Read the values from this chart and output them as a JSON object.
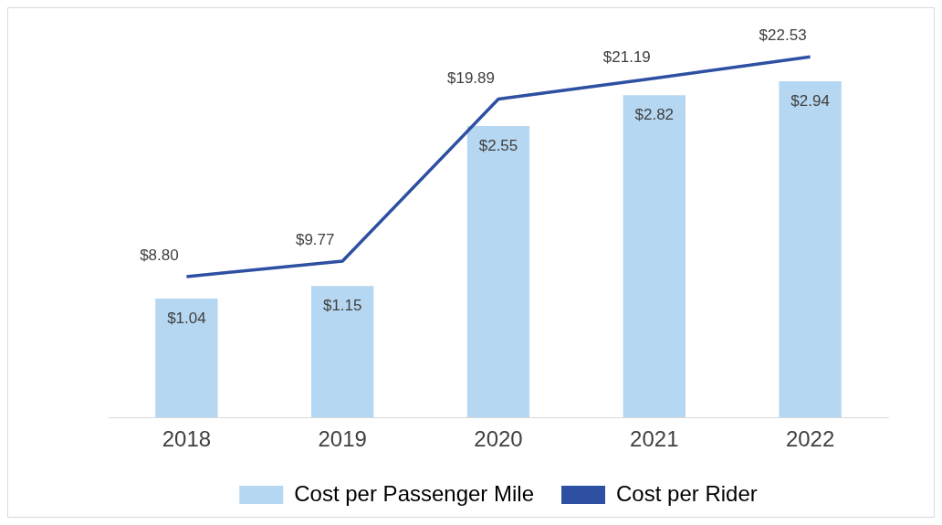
{
  "chart_data": {
    "type": "bar",
    "categories": [
      "2018",
      "2019",
      "2020",
      "2021",
      "2022"
    ],
    "series": [
      {
        "name": "Cost per Passenger Mile",
        "color": "#b6d7f1",
        "values": [
          1.04,
          1.15,
          2.55,
          2.82,
          2.94
        ],
        "value_labels": [
          "$1.04",
          "$1.15",
          "$2.55",
          "$2.82",
          "$2.94"
        ]
      },
      {
        "name": "Cost per Rider",
        "type": "line",
        "axis": "y2",
        "color": "#2e50a2",
        "values": [
          8.8,
          9.77,
          19.89,
          21.19,
          22.53
        ],
        "value_labels": [
          "$8.80",
          "$9.77",
          "$19.89",
          "$21.19",
          "$22.53"
        ]
      }
    ],
    "tick_labels": "x",
    "grid": false,
    "legend": "bottom",
    "marker": "none",
    "line_style": "solid"
  }
}
